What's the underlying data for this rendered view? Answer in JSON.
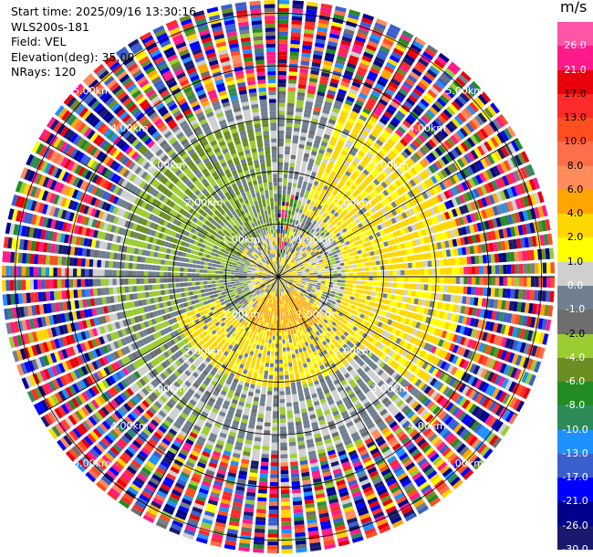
{
  "header": {
    "start_time": "Start time: 2025/09/16 13:30:16",
    "instrument": "WLS200s-181",
    "field": "Field: VEL",
    "elevation": "Elevation(deg): 35.00",
    "nrays": "NRays: 120"
  },
  "colorbar": {
    "unit": "m/s",
    "ticks": [
      "26.0",
      "21.0",
      "17.0",
      "13.0",
      "10.0",
      "8.0",
      "6.0",
      "4.0",
      "2.0",
      "1.0",
      "0.0",
      "-1.0",
      "-2.0",
      "-4.0",
      "-6.0",
      "-8.0",
      "-10.0",
      "-13.0",
      "-17.0",
      "-21.0",
      "-26.0",
      "-30.0"
    ],
    "colors": [
      "#ff55a6",
      "#ff1a8c",
      "#e8000b",
      "#ff2a2a",
      "#ff4e1f",
      "#ff6e4a",
      "#ff8c5a",
      "#ffa500",
      "#ffd700",
      "#ffff00",
      "#cfcfcf",
      "#708090",
      "#6e6e6e",
      "#9acd32",
      "#6b8e23",
      "#228b22",
      "#2e8b57",
      "#1e90ff",
      "#3a5fcd",
      "#0000ff",
      "#00008b",
      "#191970"
    ]
  },
  "chart_data": {
    "type": "heatmap",
    "title": "",
    "field": "VEL",
    "unit": "m/s",
    "elevation_deg": 35.0,
    "n_rays": 120,
    "range_rings_km": [
      1.0,
      2.0,
      3.0,
      4.0,
      5.0
    ],
    "range_ring_labels": [
      "1.00km",
      "2.00km",
      "3.00km",
      "4.00km",
      "5.00km"
    ],
    "max_range_km": 5.25,
    "spoke_angles_deg": [
      0,
      30,
      60,
      90,
      120,
      150,
      180,
      210,
      240,
      270,
      300,
      330
    ],
    "color_scale": {
      "bounds": [
        -30,
        -26,
        -21,
        -17,
        -13,
        -10,
        -8,
        -6,
        -4,
        -2,
        -1,
        0,
        1,
        2,
        4,
        6,
        8,
        10,
        13,
        17,
        21,
        26
      ],
      "colors_low_to_high": [
        "#191970",
        "#00008b",
        "#0000ff",
        "#3a5fcd",
        "#1e90ff",
        "#2e8b57",
        "#228b22",
        "#6b8e23",
        "#9acd32",
        "#6e6e6e",
        "#708090",
        "#cfcfcf",
        "#ffff00",
        "#ffd700",
        "#ffa500",
        "#ff8c5a",
        "#ff6e4a",
        "#ff4e1f",
        "#ff2a2a",
        "#e8000b",
        "#ff1a8c",
        "#ff55a6"
      ]
    },
    "regions": [
      {
        "area": "northwest, 1.0-3.0 km",
        "velocity_ms": [
          -6,
          -2
        ]
      },
      {
        "area": "north/northwest near centre",
        "velocity_ms": [
          -4,
          0
        ]
      },
      {
        "area": "east, 1.5-3.5 km",
        "velocity_ms": [
          1,
          4
        ]
      },
      {
        "area": "south, 0.5-2.0 km",
        "velocity_ms": [
          2,
          6
        ]
      },
      {
        "area": "west/south ring, 1.0-3.5 km",
        "velocity_ms": [
          -1,
          0
        ]
      },
      {
        "area": "beyond 3.5 km (noise)",
        "velocity_ms": [
          -30,
          26
        ]
      }
    ]
  }
}
